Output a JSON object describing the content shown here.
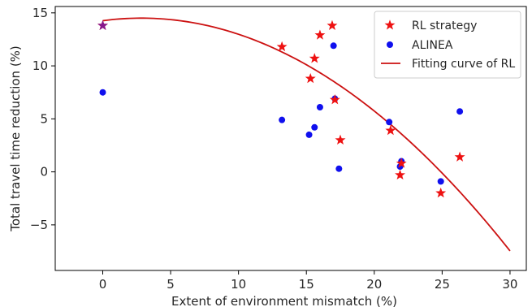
{
  "chart_data": {
    "type": "scatter",
    "xlabel": "Extent of environment mismatch (%)",
    "ylabel": "Total travel time reduction (%)",
    "xlim": [
      -3.5,
      31.2
    ],
    "ylim": [
      -9.3,
      15.6
    ],
    "xticks": [
      0,
      5,
      10,
      15,
      20,
      25,
      30
    ],
    "yticks": [
      -5,
      0,
      5,
      10,
      15
    ],
    "xtick_labels": [
      "0",
      "5",
      "10",
      "15",
      "20",
      "25",
      "30"
    ],
    "ytick_labels": [
      "−5",
      "0",
      "5",
      "10",
      "15"
    ],
    "grid": false,
    "legend_position": "top-right",
    "series": [
      {
        "name": "RL strategy",
        "marker": "star",
        "color": "#ee1111",
        "points": [
          [
            0,
            13.8
          ],
          [
            13.2,
            11.8
          ],
          [
            15.3,
            8.8
          ],
          [
            15.6,
            10.7
          ],
          [
            16.0,
            12.9
          ],
          [
            16.9,
            13.8
          ],
          [
            17.1,
            6.8
          ],
          [
            17.5,
            3.0
          ],
          [
            21.2,
            3.9
          ],
          [
            21.9,
            -0.3
          ],
          [
            22.0,
            0.8
          ],
          [
            24.9,
            -2.0
          ],
          [
            26.3,
            1.4
          ]
        ]
      },
      {
        "name": "ALINEA",
        "marker": "circle",
        "color": "#1010ee",
        "points": [
          [
            0,
            7.5
          ],
          [
            13.2,
            4.9
          ],
          [
            15.2,
            3.5
          ],
          [
            15.6,
            4.2
          ],
          [
            16.0,
            6.1
          ],
          [
            17.0,
            11.9
          ],
          [
            17.1,
            6.9
          ],
          [
            17.4,
            0.3
          ],
          [
            21.1,
            4.7
          ],
          [
            21.9,
            0.5
          ],
          [
            22.0,
            1.0
          ],
          [
            24.9,
            -0.9
          ],
          [
            26.3,
            5.7
          ]
        ]
      },
      {
        "name": "Fitting curve of RL",
        "marker": "line",
        "color": "#cc1111",
        "coefficients": [
          14.26,
          0.17,
          -0.0298
        ],
        "x_range": [
          0,
          30
        ]
      }
    ]
  }
}
